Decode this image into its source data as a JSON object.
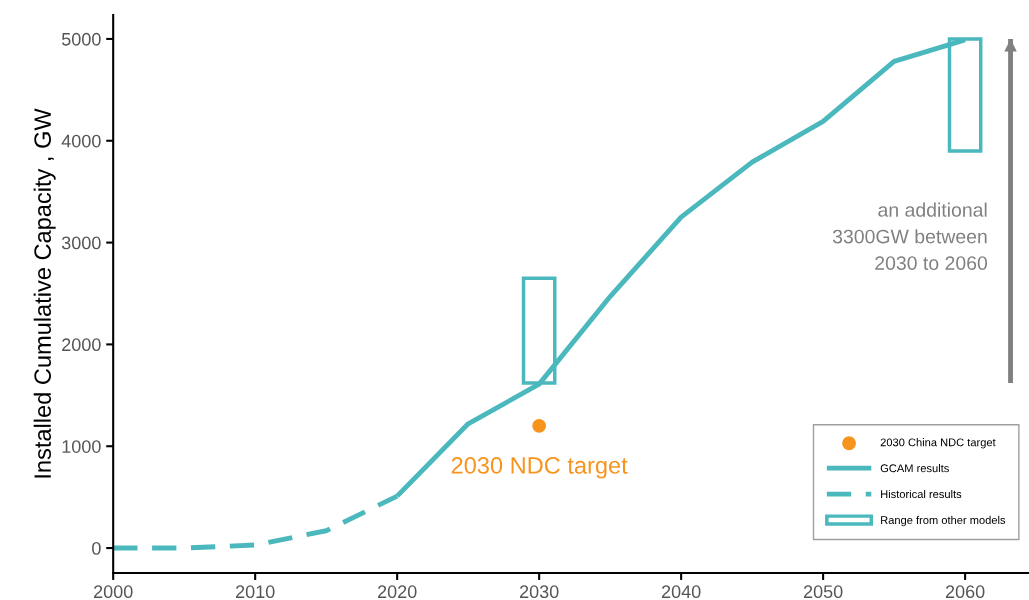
{
  "chart_data": {
    "type": "line",
    "ylabel": "Installed Cumulative Capacity , GW",
    "xlim": [
      2000,
      2064.5
    ],
    "xticks": [
      2000,
      2010,
      2020,
      2030,
      2040,
      2050,
      2060
    ],
    "ylim": [
      -245,
      5235
    ],
    "yticks": [
      0,
      1000,
      2000,
      3000,
      4000,
      5000
    ],
    "grid": false,
    "legend": "bottom right",
    "series": [
      {
        "name": "2030 China NDC target",
        "type": "scatter",
        "color": "#f7941d",
        "x": [
          2030
        ],
        "values": [
          1200
        ],
        "marker": "circle"
      },
      {
        "name": "GCAM results",
        "color": "#4ab8bc",
        "line_style": "solid",
        "x": [
          2020,
          2025,
          2030,
          2035,
          2040,
          2045,
          2050,
          2055,
          2060
        ],
        "values": [
          510,
          1220,
          1610,
          2470,
          3250,
          3790,
          4190,
          4780,
          4990
        ]
      },
      {
        "name": "Historical results",
        "color": "#4ab8bc",
        "line_style": "dashed",
        "x": [
          2000,
          2005,
          2010,
          2015,
          2020
        ],
        "values": [
          0,
          0,
          30,
          170,
          510
        ]
      },
      {
        "name": "Range from other models",
        "type": "bar",
        "color": "#4ab8bc",
        "x": [
          2030,
          2060
        ],
        "base": [
          1620,
          3900
        ],
        "values": [
          1030,
          1100
        ]
      },
      {
        "color": "#808080",
        "line_style": "solid",
        "x": [
          2063.2,
          2063.2
        ],
        "values": [
          1620,
          5000
        ]
      }
    ],
    "annotations": [
      {
        "text": "2030 NDC target",
        "x": 2030,
        "y": 1200
      },
      "an additional\n3300GW between\n2030 to 2060"
    ]
  }
}
